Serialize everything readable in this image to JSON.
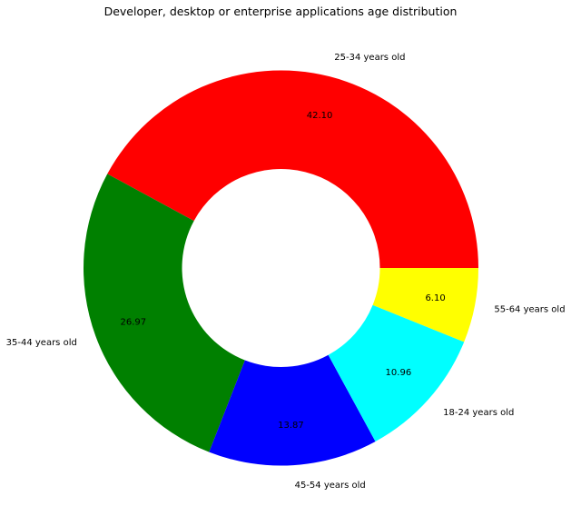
{
  "chart_data": {
    "type": "pie",
    "donut": true,
    "title": "Developer, desktop or enterprise applications age distribution",
    "autopct_format": "%.2f",
    "categories": [
      "25-34 years old",
      "35-44 years old",
      "45-54 years old",
      "18-24 years old",
      "55-64 years old"
    ],
    "values": [
      42.1,
      26.97,
      13.87,
      10.96,
      6.1
    ],
    "colors": [
      "#ff0000",
      "#008000",
      "#0000ff",
      "#00ffff",
      "#ffff00"
    ],
    "start_angle_deg": 0,
    "direction": "counterclockwise",
    "legend": "none"
  }
}
